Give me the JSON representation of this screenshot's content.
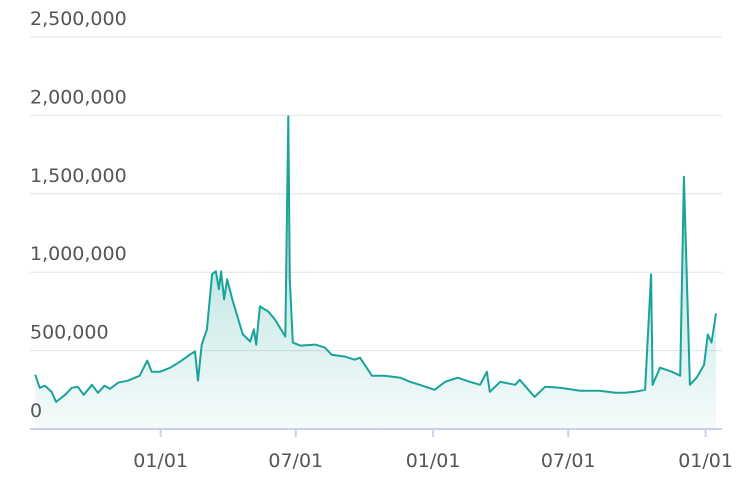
{
  "chart_data": {
    "type": "area",
    "x": [
      7,
      13,
      20,
      29,
      35,
      47,
      56,
      64,
      72,
      83,
      91,
      100,
      107,
      118,
      131,
      147,
      157,
      163,
      174,
      188,
      201,
      214,
      221,
      225,
      230,
      237,
      244,
      249,
      253,
      256,
      260,
      264,
      271,
      279,
      285,
      295,
      300,
      303,
      308,
      319,
      328,
      342,
      346,
      348,
      352,
      362,
      382,
      395,
      404,
      422,
      435,
      442,
      458,
      475,
      496,
      509,
      522,
      542,
      556,
      573,
      589,
      603,
      612,
      616,
      630,
      650,
      656,
      670,
      676,
      690,
      710,
      737,
      763,
      784,
      797,
      810,
      824,
      832,
      834,
      844,
      860,
      871,
      876,
      884,
      893,
      903,
      908,
      913,
      919
    ],
    "values": [
      346000,
      263000,
      276000,
      237000,
      173000,
      218000,
      263000,
      269000,
      218000,
      282000,
      231000,
      276000,
      256000,
      295000,
      308000,
      340000,
      436000,
      365000,
      365000,
      391000,
      429000,
      474000,
      494000,
      308000,
      538000,
      635000,
      987000,
      1006000,
      891000,
      1006000,
      827000,
      955000,
      827000,
      699000,
      603000,
      558000,
      635000,
      538000,
      782000,
      750000,
      699000,
      590000,
      1994000,
      955000,
      551000,
      532000,
      538000,
      519000,
      474000,
      462000,
      442000,
      455000,
      340000,
      340000,
      327000,
      301000,
      282000,
      250000,
      301000,
      327000,
      301000,
      282000,
      365000,
      237000,
      301000,
      282000,
      314000,
      237000,
      205000,
      269000,
      263000,
      244000,
      244000,
      231000,
      231000,
      237000,
      250000,
      987000,
      282000,
      391000,
      365000,
      340000,
      1609000,
      282000,
      327000,
      410000,
      603000,
      551000,
      737000
    ],
    "color": "#1aa39a",
    "xlim": [
      0,
      927
    ],
    "xticks": [
      {
        "value": 175,
        "label": "01/01"
      },
      {
        "value": 356,
        "label": "07/01"
      },
      {
        "value": 540,
        "label": "01/01"
      },
      {
        "value": 721,
        "label": "07/01"
      },
      {
        "value": 905,
        "label": "01/01"
      }
    ],
    "ylim": [
      0,
      2500000
    ],
    "yticks": [
      0,
      {
        "value": 500000,
        "label": "500,000"
      },
      {
        "value": 1000000,
        "label": "1,000,000"
      },
      {
        "value": 1500000,
        "label": "1,500,000"
      },
      {
        "value": 2000000,
        "label": "2,000,000"
      },
      {
        "value": 2500000,
        "label": "2,500,000"
      }
    ],
    "grid": true
  }
}
